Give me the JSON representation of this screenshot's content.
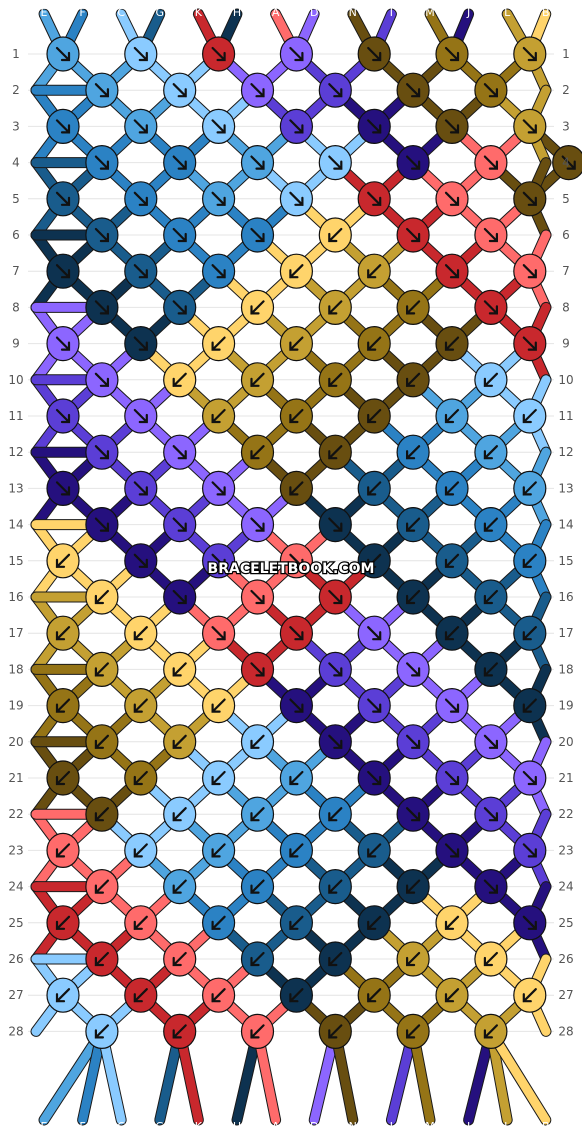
{
  "watermark": "BRACELETBOOK.COM",
  "top_letters": [
    "E",
    "F",
    "C",
    "G",
    "K",
    "H",
    "A",
    "D",
    "N",
    "I",
    "M",
    "J",
    "L",
    "B"
  ],
  "bottom_letters": [
    "E",
    "F",
    "C",
    "G",
    "K",
    "H",
    "A",
    "D",
    "N",
    "I",
    "M",
    "J",
    "L",
    "B"
  ],
  "row_numbers": [
    "1",
    "2",
    "3",
    "4",
    "5",
    "6",
    "7",
    "8",
    "9",
    "10",
    "11",
    "12",
    "13",
    "14",
    "15",
    "16",
    "17",
    "18",
    "19",
    "20",
    "21",
    "22",
    "23",
    "24",
    "25",
    "26",
    "27",
    "28"
  ],
  "palette": {
    "A": "#FF6B6B",
    "B": "#FFD46B",
    "C": "#8ACBFF",
    "D": "#8C66FF",
    "E": "#4FA5E0",
    "F": "#2B82C4",
    "G": "#195C8C",
    "H": "#0D3250",
    "I": "#5B3ED6",
    "J": "#25107E",
    "K": "#C8282D",
    "L": "#C4A032",
    "M": "#957416",
    "N": "#684E10"
  },
  "knot_legend": {
    "dr": "forward knot ↘",
    "dl": "backward knot ↙"
  },
  "knots": [
    [
      "E",
      "C",
      "K",
      "D",
      "N",
      "M",
      "L"
    ],
    [
      "E",
      "C",
      "D",
      "I",
      "N",
      "M"
    ],
    [
      "F",
      "E",
      "C",
      "I",
      "J",
      "N",
      "L"
    ],
    [
      "F",
      "F",
      "E",
      "C",
      "J",
      "A",
      "N"
    ],
    [
      "G",
      "F",
      "E",
      "C",
      "K",
      "A",
      "N"
    ],
    [
      "G",
      "F",
      "F",
      "B",
      "K",
      "A"
    ],
    [
      "H",
      "G",
      "F",
      "B",
      "L",
      "K",
      "A"
    ],
    [
      "H",
      "G",
      "B",
      "L",
      "M",
      "K"
    ],
    [
      "D",
      "H",
      "B",
      "L",
      "M",
      "N",
      "K"
    ],
    [
      "D",
      "B",
      "L",
      "M",
      "N",
      "C"
    ],
    [
      "I",
      "D",
      "L",
      "M",
      "N",
      "E",
      "C"
    ],
    [
      "I",
      "D",
      "M",
      "N",
      "F",
      "E"
    ],
    [
      "J",
      "I",
      "D",
      "N",
      "G",
      "F",
      "E"
    ],
    [
      "J",
      "I",
      "D",
      "H",
      "G",
      "F"
    ],
    [
      "B",
      "J",
      "I",
      "A",
      "H",
      "G",
      "F"
    ],
    [
      "B",
      "J",
      "A",
      "K",
      "H",
      "G"
    ],
    [
      "L",
      "B",
      "A",
      "K",
      "D",
      "H",
      "G"
    ],
    [
      "L",
      "B",
      "K",
      "I",
      "D",
      "H"
    ],
    [
      "M",
      "L",
      "B",
      "J",
      "I",
      "D",
      "H"
    ],
    [
      "M",
      "L",
      "C",
      "J",
      "I",
      "D"
    ],
    [
      "N",
      "M",
      "C",
      "E",
      "J",
      "I",
      "D"
    ],
    [
      "N",
      "C",
      "E",
      "F",
      "J",
      "I"
    ],
    [
      "A",
      "C",
      "E",
      "F",
      "G",
      "J",
      "I"
    ],
    [
      "A",
      "E",
      "F",
      "G",
      "H",
      "J"
    ],
    [
      "K",
      "A",
      "F",
      "G",
      "H",
      "B",
      "J"
    ],
    [
      "K",
      "A",
      "G",
      "H",
      "L",
      "B"
    ],
    [
      "C",
      "K",
      "A",
      "H",
      "M",
      "L",
      "B"
    ],
    [
      "C",
      "K",
      "A",
      "N",
      "M",
      "L"
    ]
  ],
  "dirs": [
    [
      "dr",
      "dr",
      "dr",
      "dr",
      "dr",
      "dr",
      "dr"
    ],
    [
      "dr",
      "dr",
      "dr",
      "dr",
      "dr",
      "dr"
    ],
    [
      "dr",
      "dr",
      "dr",
      "dr",
      "dr",
      "dr",
      "dr"
    ],
    [
      "dr",
      "dr",
      "dr",
      "dr",
      "dr",
      "dr",
      "dr"
    ],
    [
      "dr",
      "dr",
      "dr",
      "dr",
      "dr",
      "dr",
      "dr"
    ],
    [
      "dr",
      "dr",
      "dr",
      "dl",
      "dr",
      "dr"
    ],
    [
      "dr",
      "dr",
      "dr",
      "dl",
      "dl",
      "dr",
      "dr"
    ],
    [
      "dr",
      "dr",
      "dl",
      "dl",
      "dl",
      "dr"
    ],
    [
      "dr",
      "dr",
      "dl",
      "dl",
      "dl",
      "dl",
      "dr"
    ],
    [
      "dr",
      "dl",
      "dl",
      "dl",
      "dl",
      "dl"
    ],
    [
      "dr",
      "dr",
      "dl",
      "dl",
      "dl",
      "dl",
      "dl"
    ],
    [
      "dr",
      "dr",
      "dl",
      "dl",
      "dl",
      "dl"
    ],
    [
      "dr",
      "dr",
      "dr",
      "dl",
      "dl",
      "dl",
      "dl"
    ],
    [
      "dr",
      "dr",
      "dr",
      "dr",
      "dl",
      "dl"
    ],
    [
      "dl",
      "dr",
      "dr",
      "dr",
      "dl",
      "dl",
      "dl"
    ],
    [
      "dl",
      "dr",
      "dr",
      "dr",
      "dl",
      "dl"
    ],
    [
      "dl",
      "dl",
      "dr",
      "dr",
      "dr",
      "dl",
      "dl"
    ],
    [
      "dl",
      "dl",
      "dr",
      "dr",
      "dr",
      "dl"
    ],
    [
      "dl",
      "dl",
      "dl",
      "dr",
      "dr",
      "dr",
      "dl"
    ],
    [
      "dl",
      "dl",
      "dl",
      "dr",
      "dr",
      "dr"
    ],
    [
      "dl",
      "dl",
      "dl",
      "dl",
      "dr",
      "dr",
      "dr"
    ],
    [
      "dl",
      "dl",
      "dl",
      "dl",
      "dr",
      "dr"
    ],
    [
      "dl",
      "dl",
      "dl",
      "dl",
      "dl",
      "dr",
      "dr"
    ],
    [
      "dl",
      "dl",
      "dl",
      "dl",
      "dl",
      "dr"
    ],
    [
      "dl",
      "dl",
      "dl",
      "dl",
      "dl",
      "dl",
      "dr"
    ],
    [
      "dl",
      "dl",
      "dl",
      "dl",
      "dl",
      "dl"
    ],
    [
      "dl",
      "dl",
      "dl",
      "dl",
      "dl",
      "dl",
      "dl"
    ],
    [
      "dl",
      "dl",
      "dl",
      "dl",
      "dl",
      "dl"
    ]
  ]
}
